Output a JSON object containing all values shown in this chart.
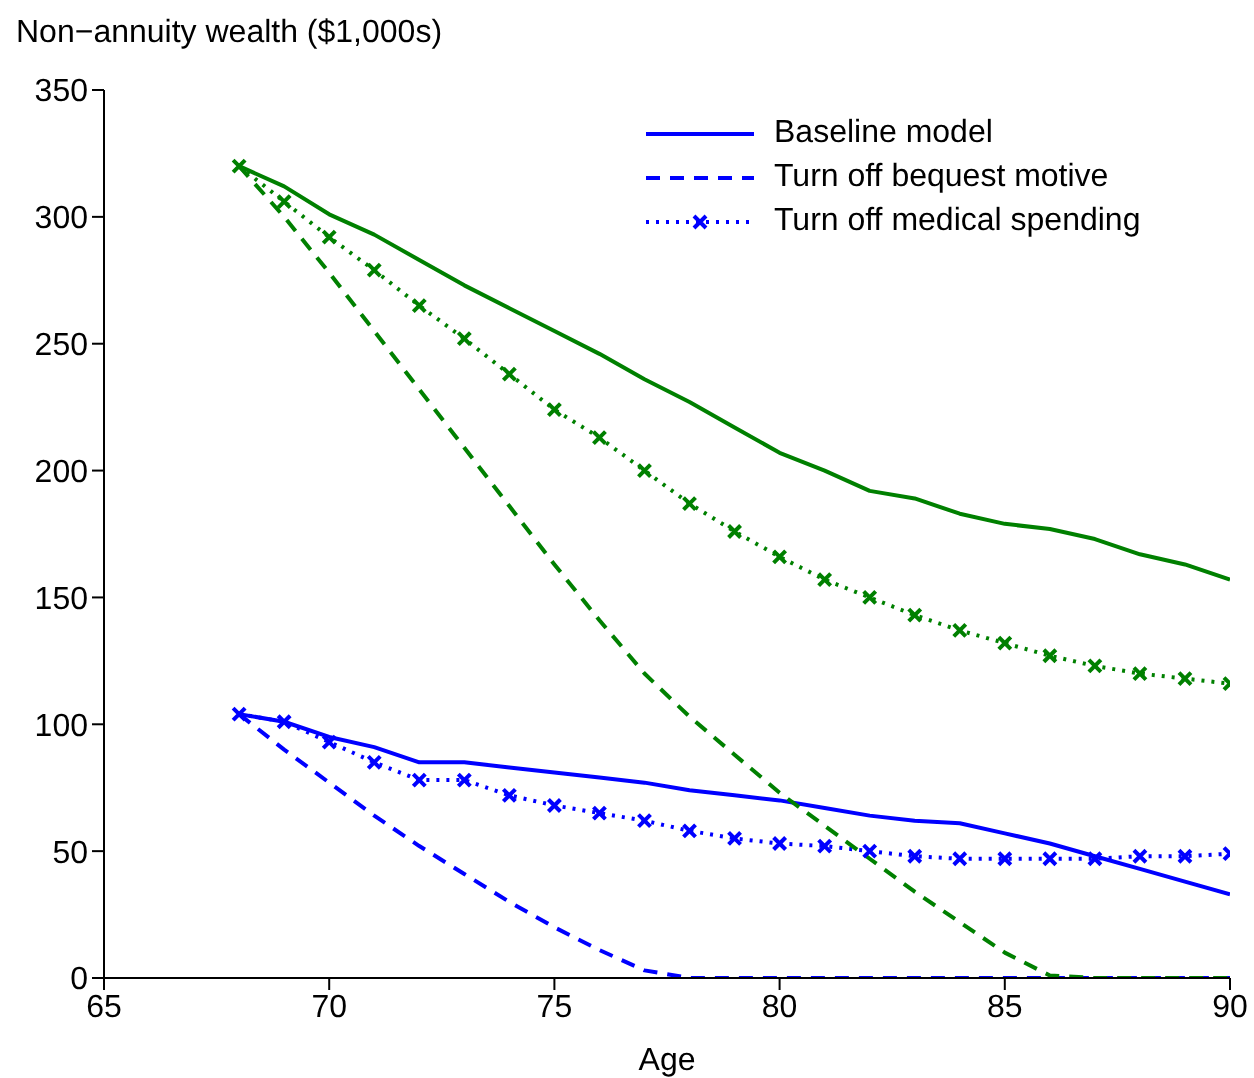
{
  "chart_data": {
    "type": "line",
    "ylabel": "Non−annuity wealth ($1,000s)",
    "xlabel": "Age",
    "x": [
      68,
      69,
      70,
      71,
      72,
      73,
      74,
      75,
      76,
      77,
      78,
      79,
      80,
      81,
      82,
      83,
      84,
      85,
      86,
      87,
      88,
      89,
      90
    ],
    "series": [
      {
        "name": "Baseline model",
        "color": "#0000ff",
        "line_style": "solid",
        "marker": "none",
        "values": [
          104,
          101,
          95,
          91,
          85,
          85,
          83,
          81,
          79,
          77,
          74,
          72,
          70,
          67,
          64,
          62,
          61,
          57,
          53,
          48,
          43,
          38,
          33
        ]
      },
      {
        "name": "Turn off bequest motive",
        "color": "#0000ff",
        "line_style": "dashed",
        "marker": "none",
        "values": [
          104,
          90,
          77,
          64,
          52,
          41,
          30,
          20,
          11,
          3,
          0,
          0,
          0,
          0,
          0,
          0,
          0,
          0,
          0,
          0,
          0,
          0,
          0
        ]
      },
      {
        "name": "Turn off medical spending",
        "color": "#0000ff",
        "line_style": "dotted",
        "marker": "cross",
        "values": [
          104,
          101,
          93,
          85,
          78,
          78,
          72,
          68,
          65,
          62,
          58,
          55,
          53,
          52,
          50,
          48,
          47,
          47,
          47,
          47,
          48,
          48,
          49
        ]
      },
      {
        "color": "#008000",
        "line_style": "solid",
        "marker": "none",
        "values": [
          320,
          312,
          301,
          293,
          283,
          273,
          264,
          255,
          246,
          236,
          227,
          217,
          207,
          200,
          192,
          189,
          183,
          179,
          177,
          173,
          167,
          163,
          157
        ]
      },
      {
        "color": "#008000",
        "line_style": "dashed",
        "marker": "none",
        "values": [
          320,
          300,
          278,
          255,
          232,
          209,
          186,
          163,
          141,
          120,
          103,
          88,
          73,
          60,
          47,
          34,
          22,
          10,
          1,
          0,
          0,
          0,
          0
        ]
      },
      {
        "color": "#008000",
        "line_style": "dotted",
        "marker": "cross",
        "values": [
          320,
          306,
          292,
          279,
          265,
          252,
          238,
          224,
          213,
          200,
          187,
          176,
          166,
          157,
          150,
          143,
          137,
          132,
          127,
          123,
          120,
          118,
          116
        ]
      }
    ],
    "xlim": [
      65,
      90
    ],
    "xticks": [
      65,
      70,
      75,
      80,
      85,
      90
    ],
    "ylim": [
      0,
      350
    ],
    "yticks": [
      0,
      50,
      100,
      150,
      200,
      250,
      300,
      350
    ],
    "grid": false,
    "legend": "top right"
  }
}
